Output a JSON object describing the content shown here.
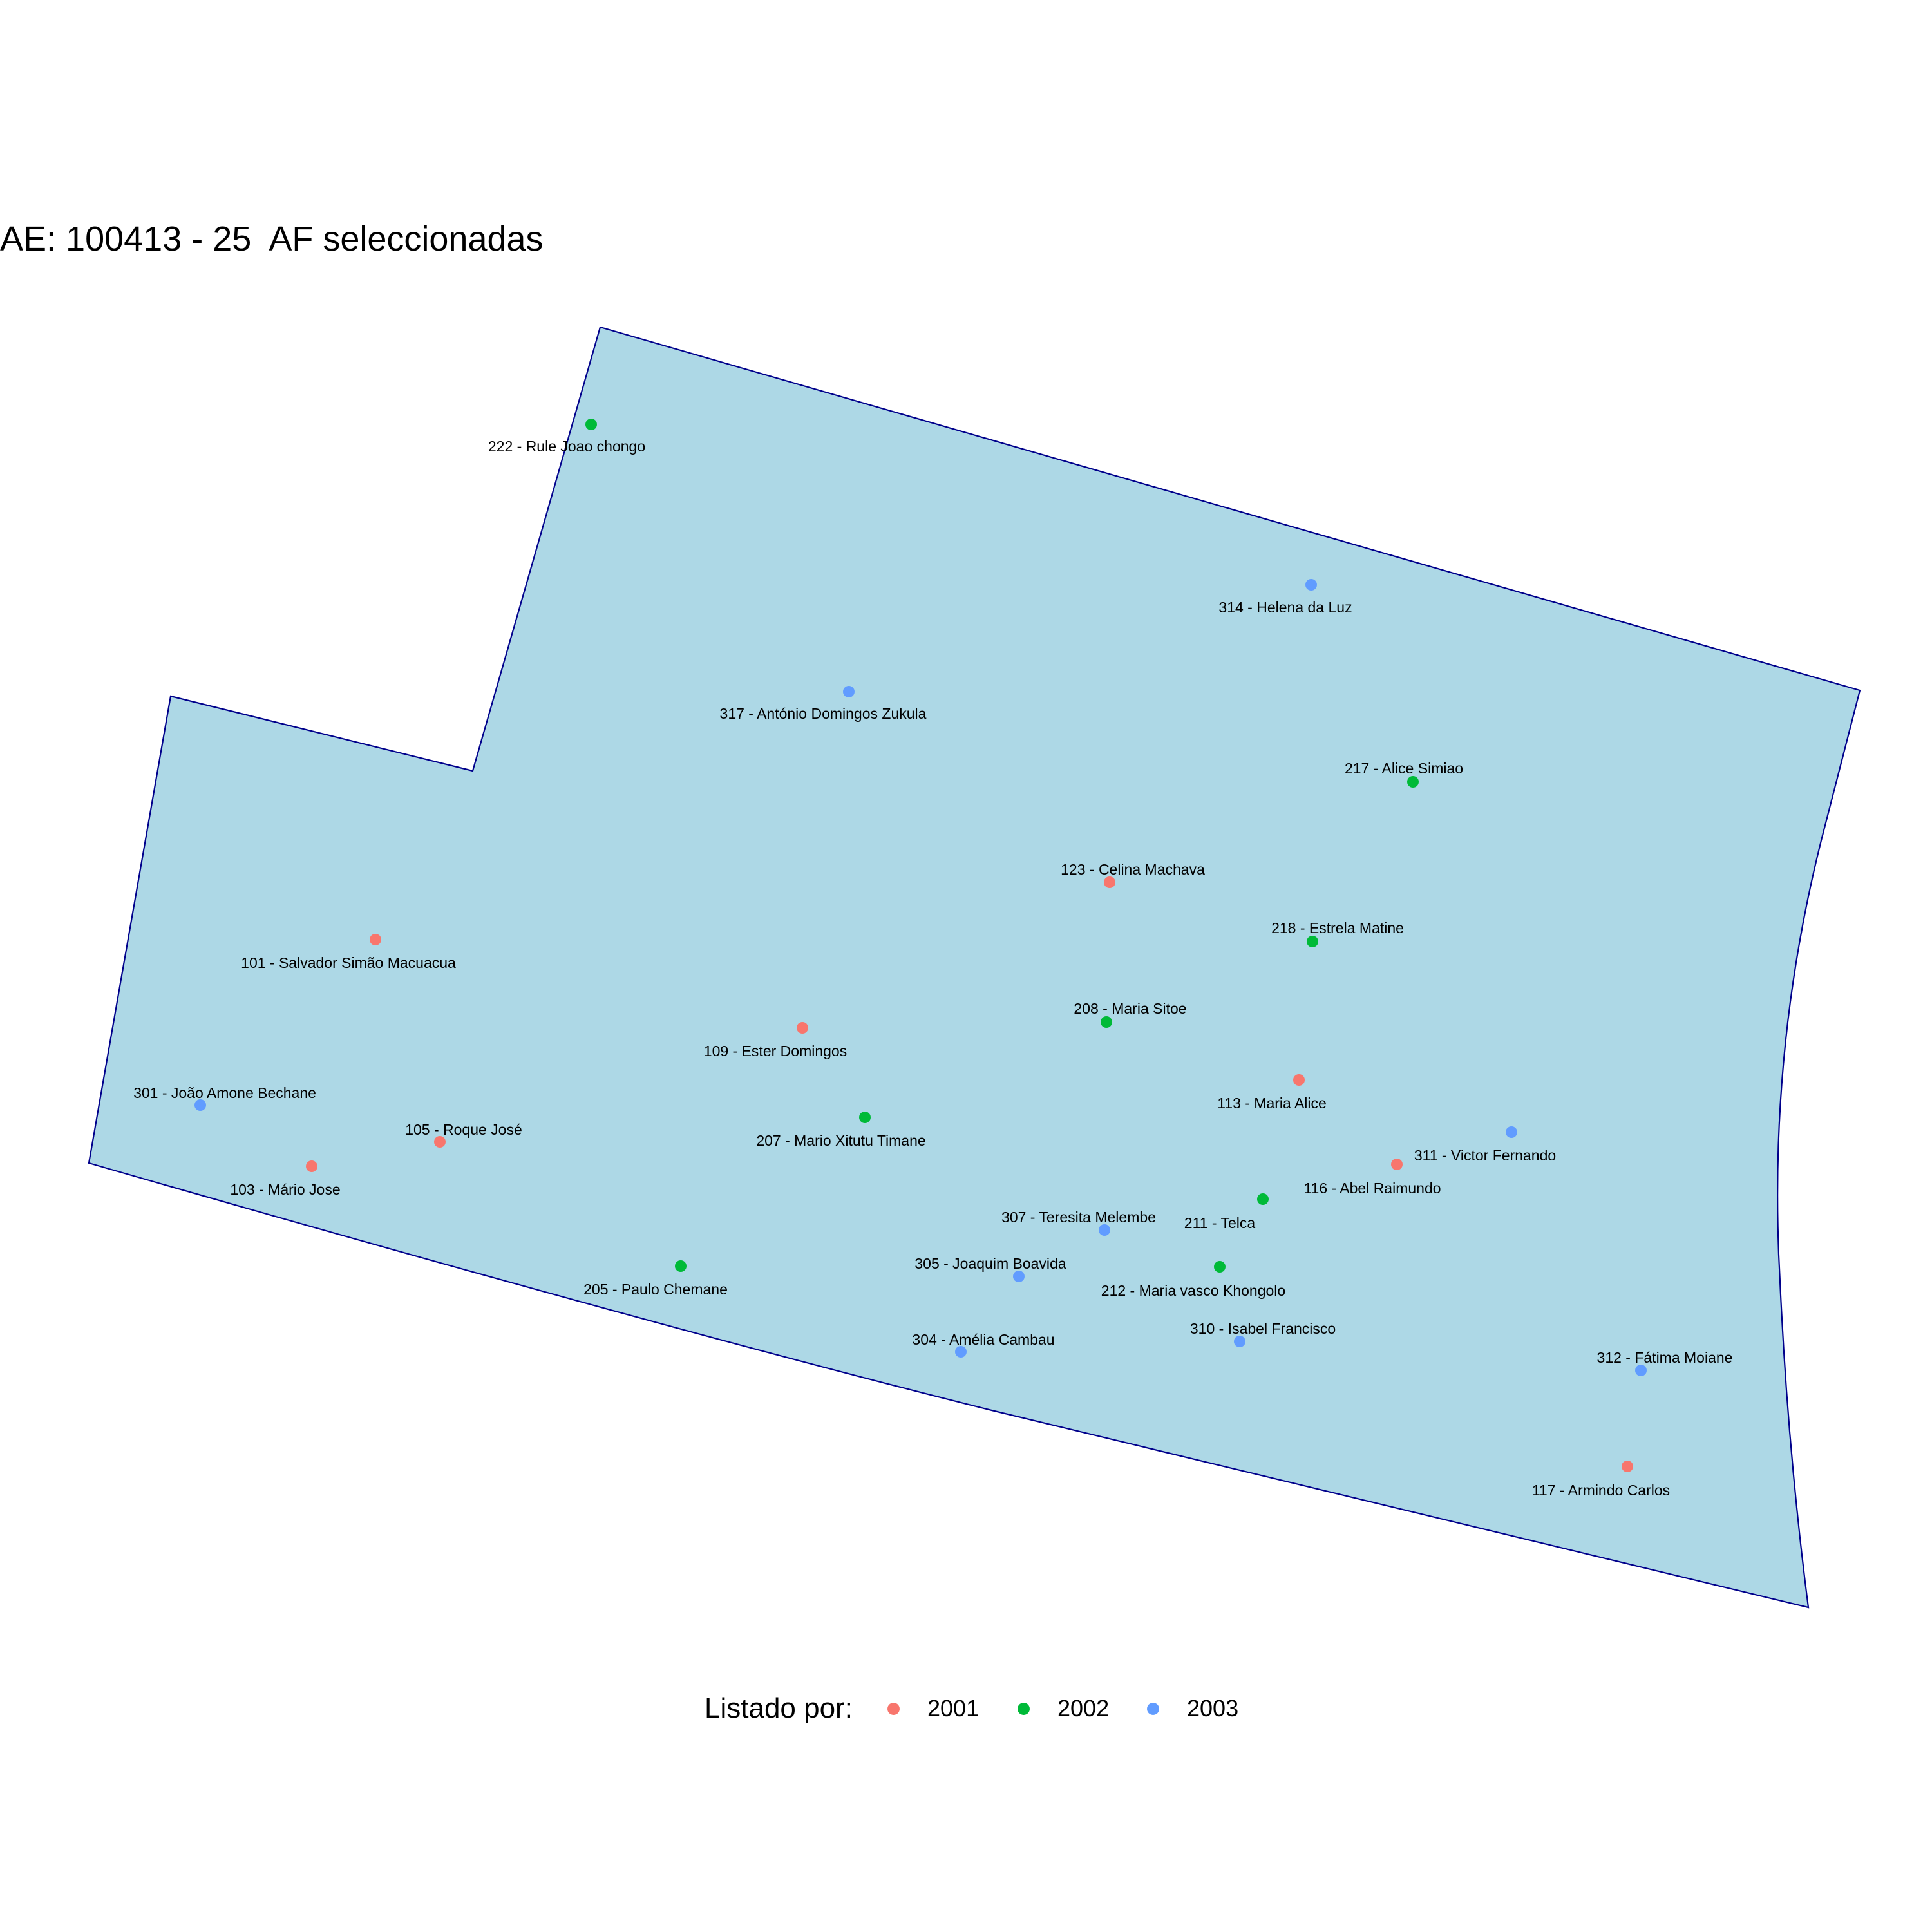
{
  "title": "AE: 100413 - 25  AF seleccionadas",
  "area_style": {
    "fill": "#add8e6",
    "stroke": "#00008b"
  },
  "legend": {
    "title": "Listado por:",
    "items": [
      {
        "label": "2001",
        "color": "#f8766d"
      },
      {
        "label": "2002",
        "color": "#00ba38"
      },
      {
        "label": "2003",
        "color": "#619cff"
      }
    ]
  },
  "points": [
    {
      "label": "222 - Rule Joao chongo",
      "group": "2002"
    },
    {
      "label": "314 - Helena da Luz",
      "group": "2003"
    },
    {
      "label": "317 - António Domingos Zukula",
      "group": "2003"
    },
    {
      "label": "217 - Alice Simiao",
      "group": "2002"
    },
    {
      "label": "123 - Celina Machava",
      "group": "2001"
    },
    {
      "label": "218 - Estrela Matine",
      "group": "2002"
    },
    {
      "label": "101 - Salvador Simão Macuacua",
      "group": "2001"
    },
    {
      "label": "208 - Maria Sitoe",
      "group": "2002"
    },
    {
      "label": "109 - Ester Domingos",
      "group": "2001"
    },
    {
      "label": "113 - Maria Alice",
      "group": "2001"
    },
    {
      "label": "301 - João Amone Bechane",
      "group": "2003"
    },
    {
      "label": "207 - Mario Xitutu Timane",
      "group": "2002"
    },
    {
      "label": "105 - Roque José",
      "group": "2001"
    },
    {
      "label": "311 - Victor Fernando",
      "group": "2003"
    },
    {
      "label": "103 - Mário Jose",
      "group": "2001"
    },
    {
      "label": "116 - Abel Raimundo",
      "group": "2001"
    },
    {
      "label": "211 - Telca",
      "group": "2002"
    },
    {
      "label": "307 - Teresita Melembe",
      "group": "2003"
    },
    {
      "label": "205 - Paulo Chemane",
      "group": "2002"
    },
    {
      "label": "212 - Maria vasco  Khongolo",
      "group": "2002"
    },
    {
      "label": "305 - Joaquim Boavida",
      "group": "2003"
    },
    {
      "label": "310 - Isabel Francisco",
      "group": "2003"
    },
    {
      "label": "304 - Amélia Cambau",
      "group": "2003"
    },
    {
      "label": "312 - Fátima Moiane",
      "group": "2003"
    },
    {
      "label": "117 - Armindo Carlos",
      "group": "2001"
    }
  ]
}
